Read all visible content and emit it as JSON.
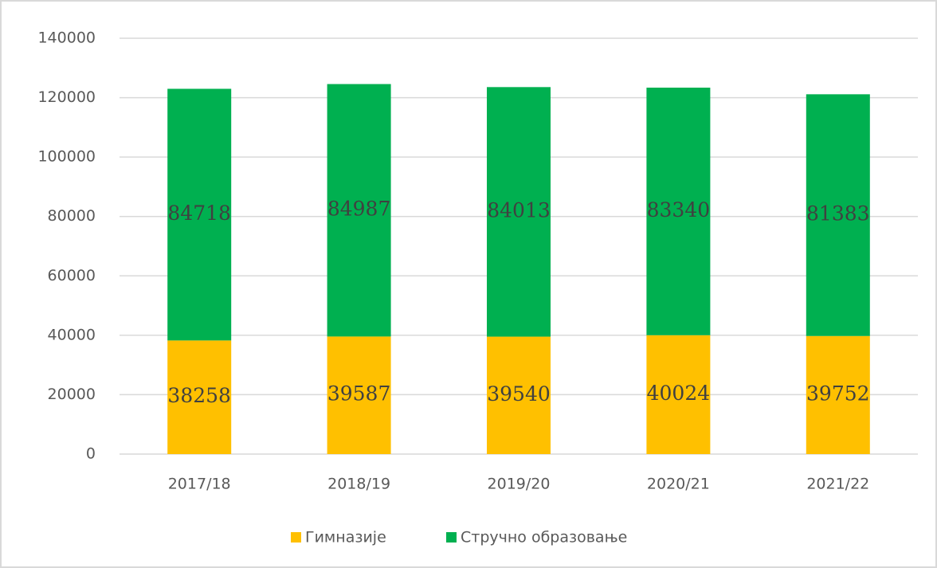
{
  "chart_data": {
    "type": "stacked_bar",
    "categories": [
      "2017/18",
      "2018/19",
      "2019/20",
      "2020/21",
      "2021/22"
    ],
    "series": [
      {
        "name": "Гимназије",
        "color": "#ffc000",
        "values": [
          38258,
          39587,
          39540,
          40024,
          39752
        ]
      },
      {
        "name": "Стручно образовање",
        "color": "#00b050",
        "values": [
          84718,
          84987,
          84013,
          83340,
          81383
        ]
      }
    ],
    "ylim": [
      0,
      140000
    ],
    "yticks": [
      0,
      20000,
      40000,
      60000,
      80000,
      100000,
      120000,
      140000
    ],
    "grid": true,
    "legend": "bottom"
  }
}
